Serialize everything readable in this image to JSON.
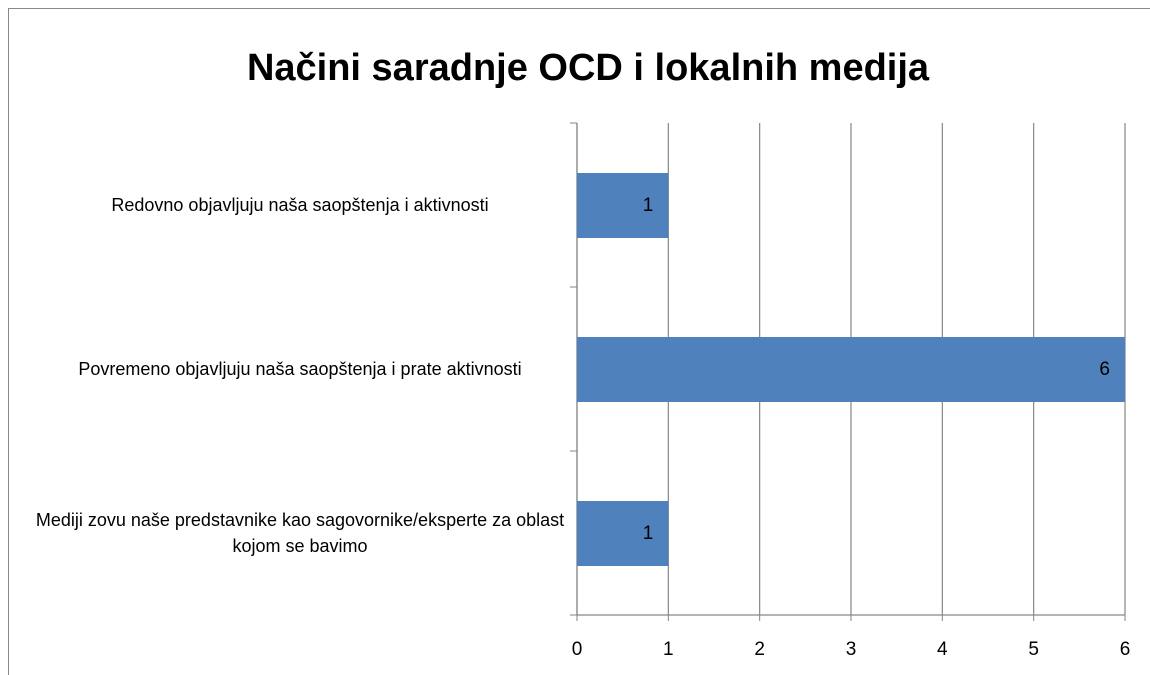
{
  "chart_data": {
    "type": "bar",
    "orientation": "horizontal",
    "title": "Načini saradnje OCD i lokalnih medija",
    "categories": [
      "Redovno objavljuju naša saopštenja i aktivnosti",
      "Povremeno objavljuju naša saopštenja i prate aktivnosti",
      "Mediji zovu naše predstavnike kao sagovornike/eksperte za oblast kojom se bavimo"
    ],
    "values": [
      1,
      6,
      1
    ],
    "color": "#4f81bd",
    "xlim": [
      0,
      6
    ],
    "xticks": [
      0,
      1,
      2,
      3,
      4,
      5,
      6
    ],
    "grid": true
  }
}
